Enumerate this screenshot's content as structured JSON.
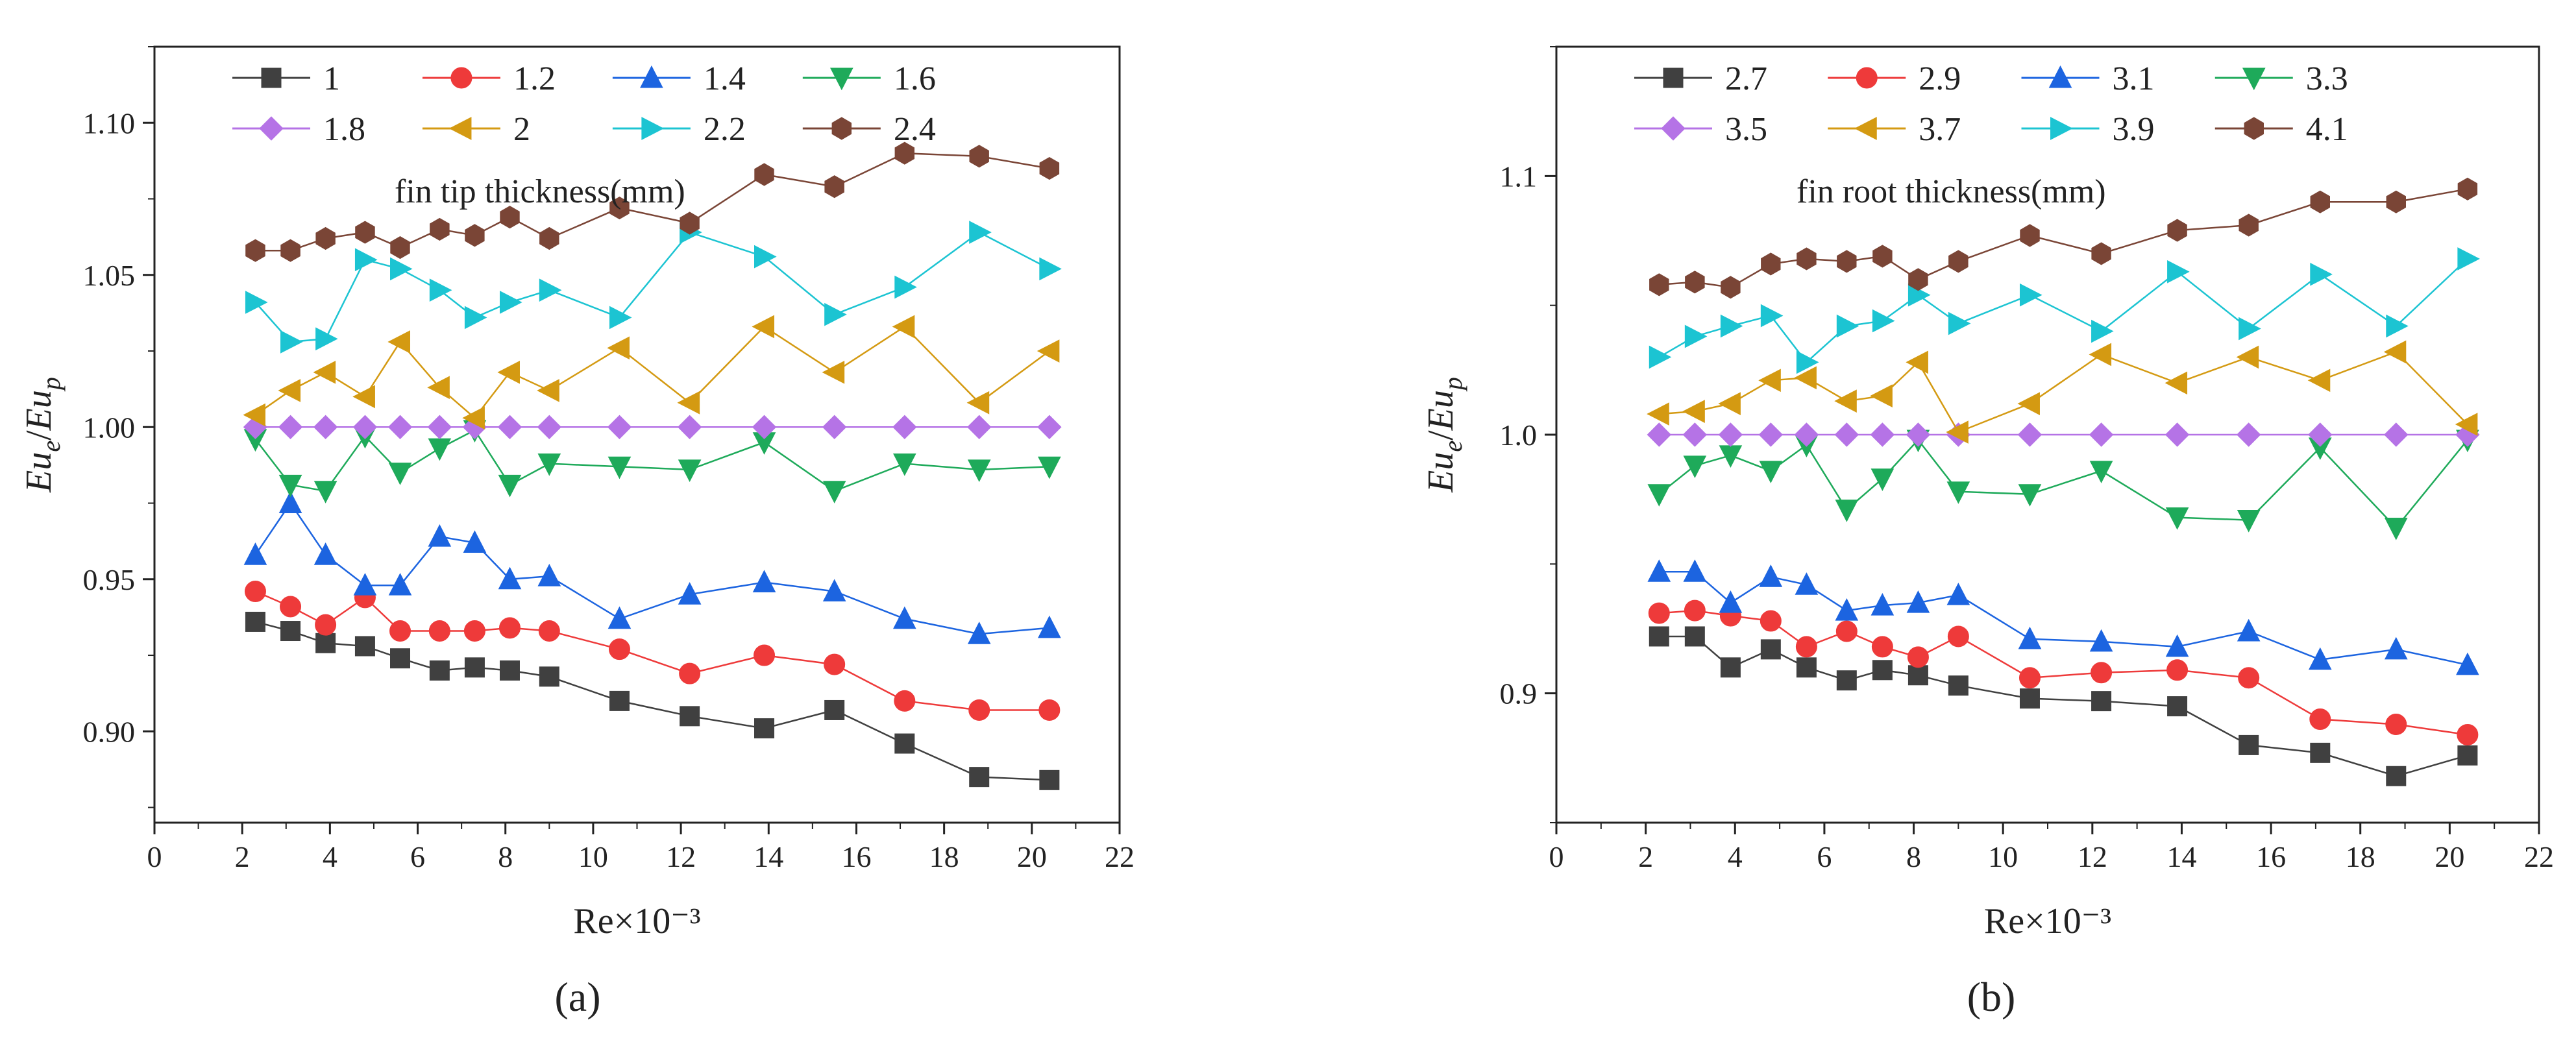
{
  "chart_data": [
    {
      "panel": "a",
      "panel_label": "(a)",
      "type": "line",
      "xlabel": "Re×10⁻³",
      "ylabel": "Eu_e/Eu_p",
      "xlim": [
        0,
        22
      ],
      "ylim": [
        0.87,
        1.125
      ],
      "xticks": [
        0,
        2,
        4,
        6,
        8,
        10,
        12,
        14,
        16,
        18,
        20,
        22
      ],
      "yticks": [
        0.9,
        0.95,
        1.0,
        1.05,
        1.1
      ],
      "ytick_labels": [
        "0.90",
        "0.95",
        "1.00",
        "1.05",
        "1.10"
      ],
      "legend_title": "fin tip thickness(mm)",
      "legend_position": "top",
      "x": [
        2.3,
        3.1,
        3.9,
        4.8,
        5.6,
        6.5,
        7.3,
        8.1,
        9.0,
        10.6,
        12.2,
        13.9,
        15.5,
        17.1,
        18.8,
        20.4
      ],
      "series": [
        {
          "name": "1",
          "color": "#404040",
          "marker": "square",
          "values": [
            0.936,
            0.933,
            0.929,
            0.928,
            0.924,
            0.92,
            0.921,
            0.92,
            0.918,
            0.91,
            0.905,
            0.901,
            0.907,
            0.896,
            0.885,
            0.884
          ]
        },
        {
          "name": "1.2",
          "color": "#ee3a3a",
          "marker": "circle",
          "values": [
            0.946,
            0.941,
            0.935,
            0.944,
            0.933,
            0.933,
            0.933,
            0.934,
            0.933,
            0.927,
            0.919,
            0.925,
            0.922,
            0.91,
            0.907,
            0.907
          ]
        },
        {
          "name": "1.4",
          "color": "#1c64e0",
          "marker": "triangle-up",
          "values": [
            0.958,
            0.975,
            0.958,
            0.948,
            0.948,
            0.964,
            0.962,
            0.95,
            0.951,
            0.937,
            0.945,
            0.949,
            0.946,
            0.937,
            0.932,
            0.934
          ]
        },
        {
          "name": "1.6",
          "color": "#1eaa5a",
          "marker": "triangle-down",
          "values": [
            0.996,
            0.981,
            0.979,
            0.997,
            0.985,
            0.993,
            0.999,
            0.981,
            0.988,
            0.987,
            0.986,
            0.995,
            0.979,
            0.988,
            0.986,
            0.987
          ]
        },
        {
          "name": "1.8",
          "color": "#b573e6",
          "marker": "diamond",
          "values": [
            1.0,
            1.0,
            1.0,
            1.0,
            1.0,
            1.0,
            1.0,
            1.0,
            1.0,
            1.0,
            1.0,
            1.0,
            1.0,
            1.0,
            1.0,
            1.0
          ]
        },
        {
          "name": "2",
          "color": "#d49a12",
          "marker": "triangle-left",
          "values": [
            1.004,
            1.012,
            1.018,
            1.01,
            1.028,
            1.013,
            1.003,
            1.018,
            1.012,
            1.026,
            1.008,
            1.033,
            1.018,
            1.033,
            1.008,
            1.025
          ]
        },
        {
          "name": "2.2",
          "color": "#1cc4d2",
          "marker": "triangle-right",
          "values": [
            1.041,
            1.028,
            1.029,
            1.055,
            1.052,
            1.045,
            1.036,
            1.041,
            1.045,
            1.036,
            1.064,
            1.056,
            1.037,
            1.046,
            1.064,
            1.052
          ]
        },
        {
          "name": "2.4",
          "color": "#7a4536",
          "marker": "hexagon",
          "values": [
            1.058,
            1.058,
            1.062,
            1.064,
            1.059,
            1.065,
            1.063,
            1.069,
            1.062,
            1.072,
            1.067,
            1.083,
            1.079,
            1.09,
            1.089,
            1.085
          ]
        }
      ]
    },
    {
      "panel": "b",
      "panel_label": "(b)",
      "type": "line",
      "xlabel": "Re×10⁻³",
      "ylabel": "Eu_e/Eu_p",
      "xlim": [
        0,
        22
      ],
      "ylim": [
        0.85,
        1.15
      ],
      "xticks": [
        0,
        2,
        4,
        6,
        8,
        10,
        12,
        14,
        16,
        18,
        20,
        22
      ],
      "yticks": [
        0.9,
        1.0,
        1.1
      ],
      "ytick_labels": [
        "0.9",
        "1.0",
        "1.1"
      ],
      "legend_title": "fin root thickness(mm)",
      "legend_position": "top",
      "x": [
        2.3,
        3.1,
        3.9,
        4.8,
        5.6,
        6.5,
        7.3,
        8.1,
        9.0,
        10.6,
        12.2,
        13.9,
        15.5,
        17.1,
        18.8,
        20.4
      ],
      "series": [
        {
          "name": "2.7",
          "color": "#404040",
          "marker": "square",
          "values": [
            0.922,
            0.922,
            0.91,
            0.917,
            0.91,
            0.905,
            0.909,
            0.907,
            0.903,
            0.898,
            0.897,
            0.895,
            0.88,
            0.877,
            0.868,
            0.876
          ]
        },
        {
          "name": "2.9",
          "color": "#ee3a3a",
          "marker": "circle",
          "values": [
            0.931,
            0.932,
            0.93,
            0.928,
            0.918,
            0.924,
            0.918,
            0.914,
            0.922,
            0.906,
            0.908,
            0.909,
            0.906,
            0.89,
            0.888,
            0.884
          ]
        },
        {
          "name": "3.1",
          "color": "#1c64e0",
          "marker": "triangle-up",
          "values": [
            0.947,
            0.947,
            0.935,
            0.945,
            0.942,
            0.932,
            0.934,
            0.935,
            0.938,
            0.921,
            0.92,
            0.918,
            0.924,
            0.913,
            0.917,
            0.911
          ]
        },
        {
          "name": "3.3",
          "color": "#1eaa5a",
          "marker": "triangle-down",
          "values": [
            0.977,
            0.988,
            0.992,
            0.986,
            0.996,
            0.971,
            0.983,
            0.998,
            0.978,
            0.977,
            0.986,
            0.968,
            0.967,
            0.995,
            0.964,
            0.998
          ]
        },
        {
          "name": "3.5",
          "color": "#b573e6",
          "marker": "diamond",
          "values": [
            1.0,
            1.0,
            1.0,
            1.0,
            1.0,
            1.0,
            1.0,
            1.0,
            1.0,
            1.0,
            1.0,
            1.0,
            1.0,
            1.0,
            1.0,
            1.0
          ]
        },
        {
          "name": "3.7",
          "color": "#d49a12",
          "marker": "triangle-left",
          "values": [
            1.008,
            1.009,
            1.012,
            1.021,
            1.022,
            1.013,
            1.015,
            1.028,
            1.001,
            1.012,
            1.031,
            1.02,
            1.03,
            1.021,
            1.032,
            1.004
          ]
        },
        {
          "name": "3.9",
          "color": "#1cc4d2",
          "marker": "triangle-right",
          "values": [
            1.03,
            1.038,
            1.042,
            1.046,
            1.028,
            1.042,
            1.044,
            1.054,
            1.043,
            1.054,
            1.04,
            1.063,
            1.041,
            1.062,
            1.042,
            1.068
          ]
        },
        {
          "name": "4.1",
          "color": "#7a4536",
          "marker": "hexagon",
          "values": [
            1.058,
            1.059,
            1.057,
            1.066,
            1.068,
            1.067,
            1.069,
            1.06,
            1.067,
            1.077,
            1.07,
            1.079,
            1.081,
            1.09,
            1.09,
            1.095
          ]
        }
      ]
    }
  ]
}
